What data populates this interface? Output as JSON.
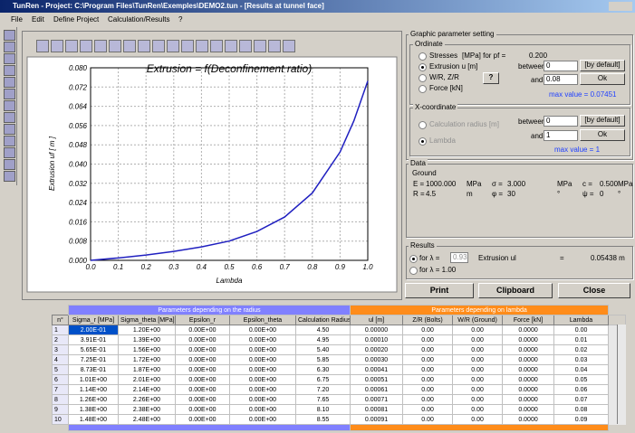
{
  "window": {
    "title": "TunRen - Project: C:\\Program Files\\TunRen\\Exemples\\DEMO2.tun - [Results at tunnel face]"
  },
  "menu": [
    "File",
    "Edit",
    "Define Project",
    "Calculation/Results",
    "?"
  ],
  "chart": {
    "type": "line",
    "title": "Extrusion = f(Deconfinement ratio)",
    "ylabel": "Extrusion uf [ m ]",
    "xlabel": "Lambda",
    "color": "#2020c0",
    "grid": true,
    "x": [
      0,
      0.1,
      0.2,
      0.3,
      0.4,
      0.5,
      0.6,
      0.7,
      0.8,
      0.9,
      0.95,
      1.0
    ],
    "values": [
      0,
      0.001,
      0.0022,
      0.0037,
      0.0056,
      0.008,
      0.012,
      0.018,
      0.028,
      0.045,
      0.058,
      0.0745
    ],
    "xlim": [
      0,
      1
    ],
    "ylim": [
      0,
      0.08
    ],
    "xticks": [
      {
        "value": 0,
        "label": "0.0"
      },
      0.1,
      0.2,
      0.3,
      0.4,
      0.5,
      0.6,
      0.7,
      0.8,
      0.9,
      {
        "value": 1,
        "label": "1.0"
      }
    ],
    "yticks": [
      {
        "value": 0,
        "label": "0.000"
      },
      0.008,
      0.016,
      0.024,
      0.032,
      {
        "value": 0.04,
        "label": "0.040"
      },
      0.048,
      0.056,
      0.064,
      0.072,
      {
        "value": 0.08,
        "label": "0.080"
      }
    ]
  },
  "settings": {
    "title": "Graphic parameter setting",
    "ordinate": {
      "title": "Ordinate",
      "stresses": "Stresses",
      "stresses_unit": "[MPa] for pf =",
      "pf": "0.200",
      "extrusion": "Extrusion u [m]",
      "wr": "W/R, Z/R",
      "help": "?",
      "force": "Force [kN]",
      "between": "between:",
      "min": "0",
      "default": "[by default]",
      "and": "and:",
      "max": "0.08",
      "ok": "Ok",
      "max_value": "max value = 0.07451"
    },
    "xcoord": {
      "title": "X-coordinate",
      "radius": "Calculation radius [m]",
      "lambda": "Lambda",
      "between": "between:",
      "min": "0",
      "default": "[by default]",
      "and": "and:",
      "max": "1",
      "ok": "Ok",
      "max_value": "max value = 1"
    }
  },
  "data": {
    "title": "Data",
    "ground": "Ground",
    "rows": [
      [
        "E =",
        "1000.000",
        "MPa",
        "σ =",
        "3.000",
        "MPa",
        "c =",
        "0.500",
        "MPa"
      ],
      [
        "R =",
        "4.5",
        "m",
        "φ =",
        "30",
        "°",
        "ψ =",
        "0",
        "°"
      ]
    ]
  },
  "results": {
    "title": "Results",
    "for1": "for λ =",
    "lambda1": "0.93",
    "for2": "for λ = 1.00",
    "label": "Extrusion ul",
    "eq": "=",
    "value": "0.05438 m"
  },
  "buttons": [
    "Print",
    "Clipboard",
    "Close"
  ],
  "table": {
    "groups": [
      "Parameters depending on the radius",
      "Parameters depending on lambda"
    ],
    "columns": [
      "n°",
      "Sigma_r [MPa]",
      "Sigma_theta [MPa]",
      "Epsilon_r",
      "Epsilon_theta",
      "Calculation Radius",
      "ul [m]",
      "Z/R (Bolts)",
      "W/R (Ground)",
      "Force [kN]",
      "Lambda"
    ],
    "rows": [
      [
        "1",
        "2.00E-01",
        "1.20E+00",
        "0.00E+00",
        "0.00E+00",
        "4.50",
        "0.00000",
        "0.00",
        "0.00",
        "0.0000",
        "0.00"
      ],
      [
        "2",
        "3.91E-01",
        "1.39E+00",
        "0.00E+00",
        "0.00E+00",
        "4.95",
        "0.00010",
        "0.00",
        "0.00",
        "0.0000",
        "0.01"
      ],
      [
        "3",
        "5.65E-01",
        "1.56E+00",
        "0.00E+00",
        "0.00E+00",
        "5.40",
        "0.00020",
        "0.00",
        "0.00",
        "0.0000",
        "0.02"
      ],
      [
        "4",
        "7.25E-01",
        "1.72E+00",
        "0.00E+00",
        "0.00E+00",
        "5.85",
        "0.00030",
        "0.00",
        "0.00",
        "0.0000",
        "0.03"
      ],
      [
        "5",
        "8.73E-01",
        "1.87E+00",
        "0.00E+00",
        "0.00E+00",
        "6.30",
        "0.00041",
        "0.00",
        "0.00",
        "0.0000",
        "0.04"
      ],
      [
        "6",
        "1.01E+00",
        "2.01E+00",
        "0.00E+00",
        "0.00E+00",
        "6.75",
        "0.00051",
        "0.00",
        "0.00",
        "0.0000",
        "0.05"
      ],
      [
        "7",
        "1.14E+00",
        "2.14E+00",
        "0.00E+00",
        "0.00E+00",
        "7.20",
        "0.00061",
        "0.00",
        "0.00",
        "0.0000",
        "0.06"
      ],
      [
        "8",
        "1.26E+00",
        "2.26E+00",
        "0.00E+00",
        "0.00E+00",
        "7.65",
        "0.00071",
        "0.00",
        "0.00",
        "0.0000",
        "0.07"
      ],
      [
        "9",
        "1.38E+00",
        "2.38E+00",
        "0.00E+00",
        "0.00E+00",
        "8.10",
        "0.00081",
        "0.00",
        "0.00",
        "0.0000",
        "0.08"
      ],
      [
        "10",
        "1.48E+00",
        "2.48E+00",
        "0.00E+00",
        "0.00E+00",
        "8.55",
        "0.00091",
        "0.00",
        "0.00",
        "0.0000",
        "0.09"
      ]
    ]
  }
}
